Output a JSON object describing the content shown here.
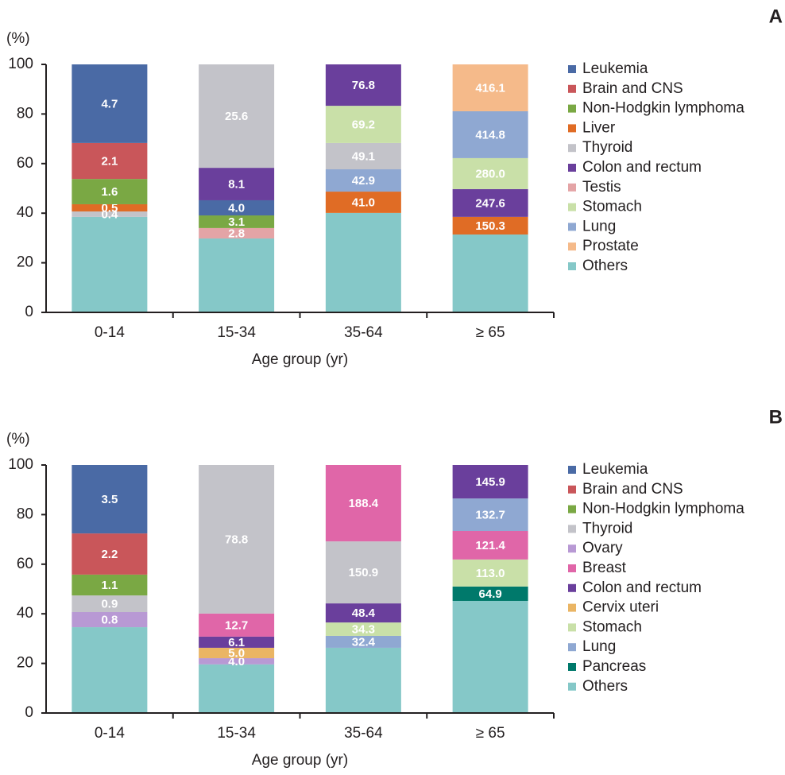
{
  "chart_data": [
    {
      "type": "stacked_bar",
      "panel": "A",
      "y_unit": "(%)",
      "x_label": "Age group (yr)",
      "categories": [
        "0-14",
        "15-34",
        "35-64",
        "≥ 65"
      ],
      "ylim": [
        0,
        100
      ],
      "yticks": [
        0,
        20,
        40,
        60,
        80,
        100
      ],
      "legend": [
        {
          "name": "Leukemia",
          "color": "#4a6aa5"
        },
        {
          "name": "Brain and CNS",
          "color": "#c9565a"
        },
        {
          "name": "Non-Hodgkin lymphoma",
          "color": "#7aa844"
        },
        {
          "name": "Liver",
          "color": "#e06c25"
        },
        {
          "name": "Thyroid",
          "color": "#c3c3c9"
        },
        {
          "name": "Colon and rectum",
          "color": "#6a3f9c"
        },
        {
          "name": "Testis",
          "color": "#e4a4a6"
        },
        {
          "name": "Stomach",
          "color": "#c9e0a8"
        },
        {
          "name": "Lung",
          "color": "#8fa8d2"
        },
        {
          "name": "Prostate",
          "color": "#f5ba8a"
        },
        {
          "name": "Others",
          "color": "#85c8c8"
        }
      ],
      "stacks": [
        [
          {
            "name": "Others",
            "value": 38.5,
            "label": null
          },
          {
            "name": "Thyroid",
            "value": 2.2,
            "label": "0.4"
          },
          {
            "name": "Liver",
            "value": 2.9,
            "label": "0.5"
          },
          {
            "name": "Non-Hodgkin lymphoma",
            "value": 10.2,
            "label": "1.6"
          },
          {
            "name": "Brain and CNS",
            "value": 14.5,
            "label": "2.1"
          },
          {
            "name": "Leukemia",
            "value": 31.7,
            "label": "4.7"
          }
        ],
        [
          {
            "name": "Others",
            "value": 29.8,
            "label": null
          },
          {
            "name": "Testis",
            "value": 4.2,
            "label": "2.8"
          },
          {
            "name": "Non-Hodgkin lymphoma",
            "value": 5.1,
            "label": "3.1"
          },
          {
            "name": "Leukemia",
            "value": 6.1,
            "label": "4.0"
          },
          {
            "name": "Colon and rectum",
            "value": 13.1,
            "label": "8.1"
          },
          {
            "name": "Thyroid",
            "value": 41.7,
            "label": "25.6"
          }
        ],
        [
          {
            "name": "Others",
            "value": 40.1,
            "label": null
          },
          {
            "name": "Liver",
            "value": 8.6,
            "label": "41.0"
          },
          {
            "name": "Lung",
            "value": 9.0,
            "label": "42.9"
          },
          {
            "name": "Thyroid",
            "value": 10.6,
            "label": "49.1"
          },
          {
            "name": "Stomach",
            "value": 15.0,
            "label": "69.2"
          },
          {
            "name": "Colon and rectum",
            "value": 16.7,
            "label": "76.8"
          }
        ],
        [
          {
            "name": "Others",
            "value": 31.4,
            "label": null
          },
          {
            "name": "Liver",
            "value": 7.1,
            "label": "150.3"
          },
          {
            "name": "Colon and rectum",
            "value": 11.2,
            "label": "247.6"
          },
          {
            "name": "Stomach",
            "value": 12.5,
            "label": "280.0"
          },
          {
            "name": "Lung",
            "value": 18.9,
            "label": "414.8"
          },
          {
            "name": "Prostate",
            "value": 18.9,
            "label": "416.1"
          }
        ]
      ]
    },
    {
      "type": "stacked_bar",
      "panel": "B",
      "y_unit": "(%)",
      "x_label": "Age group (yr)",
      "categories": [
        "0-14",
        "15-34",
        "35-64",
        "≥ 65"
      ],
      "ylim": [
        0,
        100
      ],
      "yticks": [
        0,
        20,
        40,
        60,
        80,
        100
      ],
      "legend": [
        {
          "name": "Leukemia",
          "color": "#4a6aa5"
        },
        {
          "name": "Brain and CNS",
          "color": "#c9565a"
        },
        {
          "name": "Non-Hodgkin lymphoma",
          "color": "#7aa844"
        },
        {
          "name": "Thyroid",
          "color": "#c3c3c9"
        },
        {
          "name": "Ovary",
          "color": "#b899d4"
        },
        {
          "name": "Breast",
          "color": "#e066a8"
        },
        {
          "name": "Colon and rectum",
          "color": "#6a3f9c"
        },
        {
          "name": "Cervix uteri",
          "color": "#eab564"
        },
        {
          "name": "Stomach",
          "color": "#c9e0a8"
        },
        {
          "name": "Lung",
          "color": "#8fa8d2"
        },
        {
          "name": "Pancreas",
          "color": "#00796b"
        },
        {
          "name": "Others",
          "color": "#85c8c8"
        }
      ],
      "stacks": [
        [
          {
            "name": "Others",
            "value": 34.6,
            "label": null
          },
          {
            "name": "Ovary",
            "value": 6.1,
            "label": "0.8"
          },
          {
            "name": "Thyroid",
            "value": 6.7,
            "label": "0.9"
          },
          {
            "name": "Non-Hodgkin lymphoma",
            "value": 8.4,
            "label": "1.1"
          },
          {
            "name": "Brain and CNS",
            "value": 16.6,
            "label": "2.2"
          },
          {
            "name": "Leukemia",
            "value": 27.6,
            "label": "3.5"
          }
        ],
        [
          {
            "name": "Others",
            "value": 19.6,
            "label": null
          },
          {
            "name": "Ovary",
            "value": 2.5,
            "label": "4.0"
          },
          {
            "name": "Cervix uteri",
            "value": 4.2,
            "label": "5.0"
          },
          {
            "name": "Colon and rectum",
            "value": 4.5,
            "label": "6.1"
          },
          {
            "name": "Breast",
            "value": 9.3,
            "label": "12.7"
          },
          {
            "name": "Thyroid",
            "value": 59.9,
            "label": "78.8"
          }
        ],
        [
          {
            "name": "Others",
            "value": 26.3,
            "label": null
          },
          {
            "name": "Lung",
            "value": 4.8,
            "label": "32.4"
          },
          {
            "name": "Stomach",
            "value": 5.4,
            "label": "34.3"
          },
          {
            "name": "Colon and rectum",
            "value": 7.7,
            "label": "48.4"
          },
          {
            "name": "Thyroid",
            "value": 25.0,
            "label": "150.9"
          },
          {
            "name": "Breast",
            "value": 30.8,
            "label": "188.4"
          }
        ],
        [
          {
            "name": "Others",
            "value": 45.2,
            "label": null
          },
          {
            "name": "Pancreas",
            "value": 5.8,
            "label": "64.9"
          },
          {
            "name": "Stomach",
            "value": 10.9,
            "label": "113.0"
          },
          {
            "name": "Breast",
            "value": 11.5,
            "label": "121.4"
          },
          {
            "name": "Lung",
            "value": 13.1,
            "label": "132.7"
          },
          {
            "name": "Colon and rectum",
            "value": 13.5,
            "label": "145.9"
          }
        ]
      ]
    }
  ]
}
